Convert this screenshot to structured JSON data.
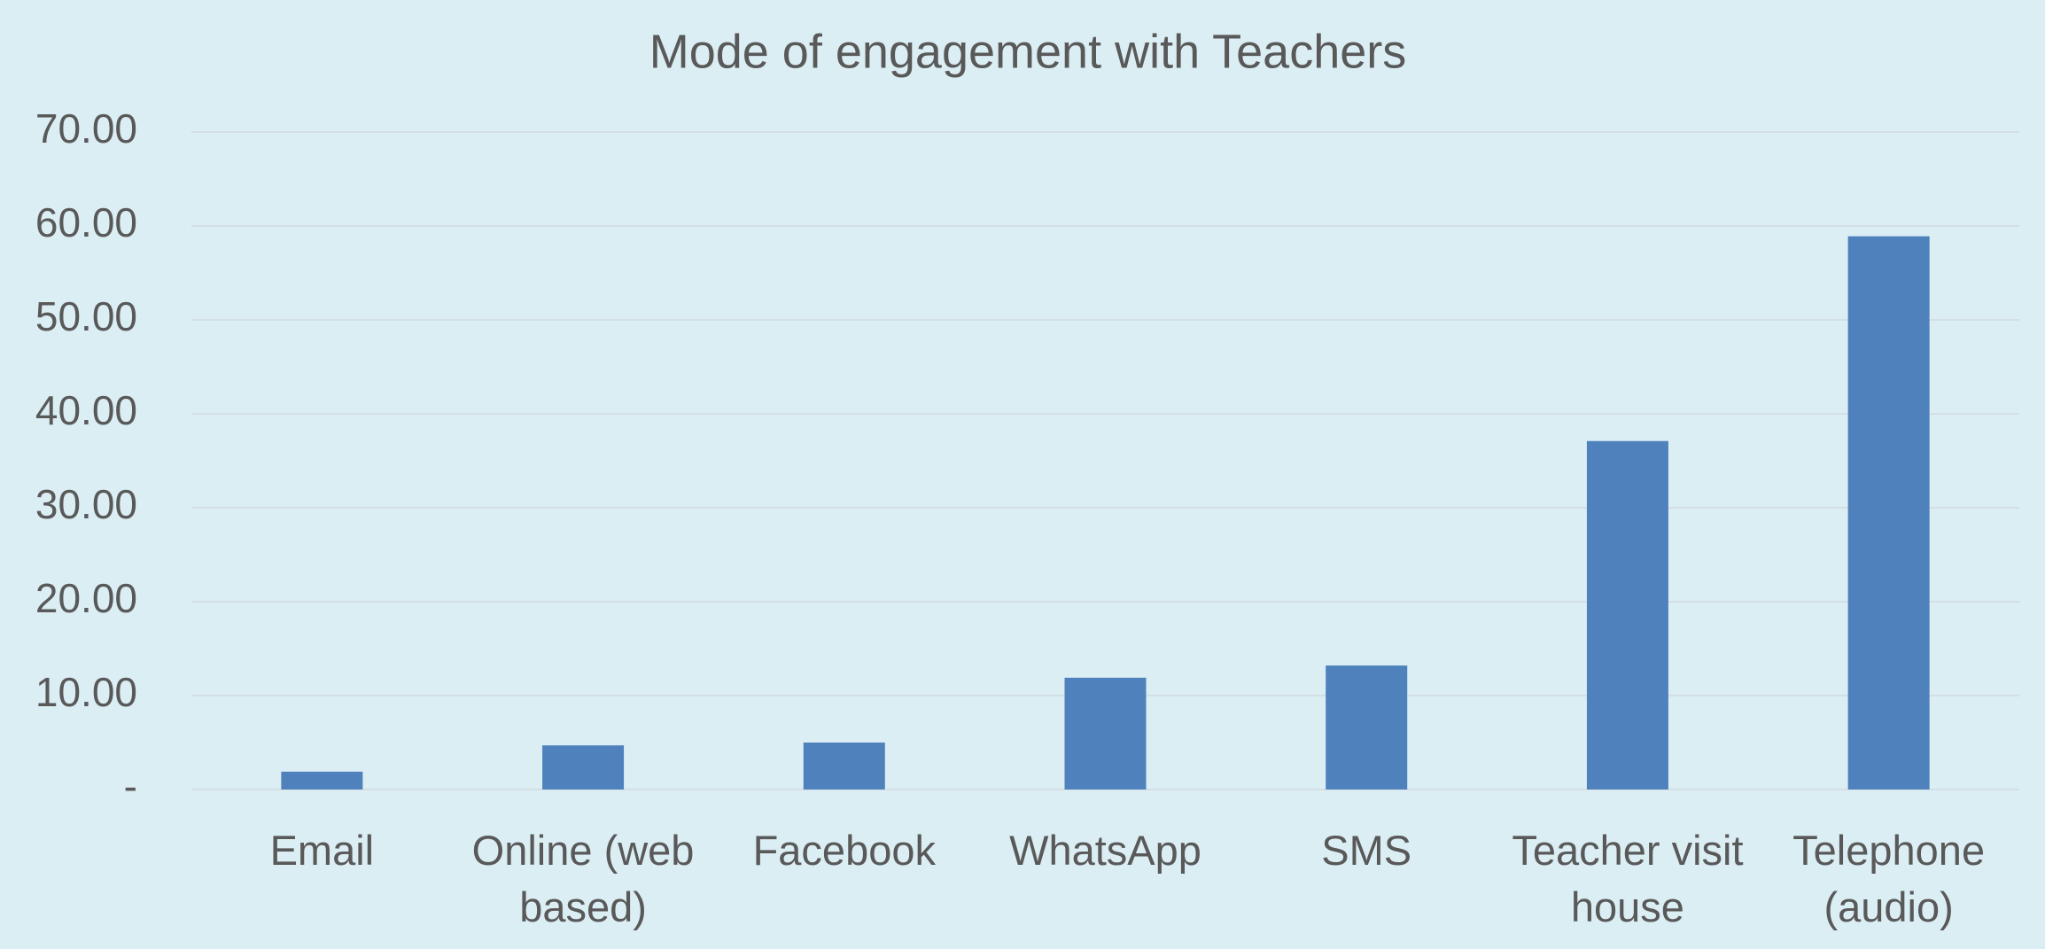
{
  "chart_data": {
    "type": "bar",
    "title": "Mode of engagement with Teachers",
    "categories": [
      "Email",
      "Online (web based)",
      "Facebook",
      "WhatsApp",
      "SMS",
      "Teacher visit house",
      "Telephone (audio)"
    ],
    "values": [
      1.9,
      4.7,
      5.0,
      11.9,
      13.2,
      37.1,
      58.9
    ],
    "color": "#4f81bd",
    "ylim": [
      0,
      70
    ],
    "yticks": [
      {
        "value": 0,
        "label": "-"
      },
      {
        "value": 10,
        "label": "10.00"
      },
      {
        "value": 20,
        "label": "20.00"
      },
      {
        "value": 30,
        "label": "30.00"
      },
      {
        "value": 40,
        "label": "40.00"
      },
      {
        "value": 50,
        "label": "50.00"
      },
      {
        "value": 60,
        "label": "60.00"
      },
      {
        "value": 70,
        "label": "70.00"
      }
    ],
    "grid": true
  }
}
